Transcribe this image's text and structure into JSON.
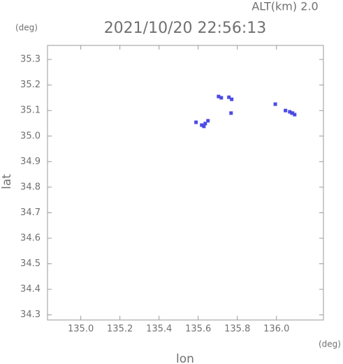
{
  "chart_data": {
    "type": "scatter",
    "title": "2021/10/20 22:56:13",
    "subtitle": "ALT(km) 2.0",
    "y_unit": "(deg)",
    "x_unit": "(deg)",
    "xlabel": "lon",
    "ylabel": "lat",
    "x": [
      135.589,
      135.618,
      135.636,
      135.65,
      135.629,
      135.704,
      135.718,
      135.757,
      135.771,
      135.768,
      135.994,
      136.046,
      136.068,
      136.082,
      136.093,
      136.079
    ],
    "y": [
      35.054,
      35.043,
      35.049,
      35.06,
      35.038,
      35.155,
      35.15,
      35.152,
      35.144,
      35.09,
      35.125,
      35.1,
      35.095,
      35.09,
      35.084,
      35.09
    ],
    "color": "#4a4ae6",
    "xlim": [
      134.83,
      136.24
    ],
    "ylim": [
      34.28,
      35.355
    ],
    "xticks": [
      {
        "value": 135,
        "label": "135.0"
      },
      135.2,
      135.4,
      135.6,
      135.8,
      {
        "value": 136,
        "label": "136.0"
      }
    ],
    "yticks": [
      34.3,
      34.4,
      34.5,
      34.6,
      34.7,
      34.8,
      34.9,
      {
        "value": 35,
        "label": "35.0"
      },
      35.1,
      35.2,
      35.3
    ],
    "grid": false
  }
}
